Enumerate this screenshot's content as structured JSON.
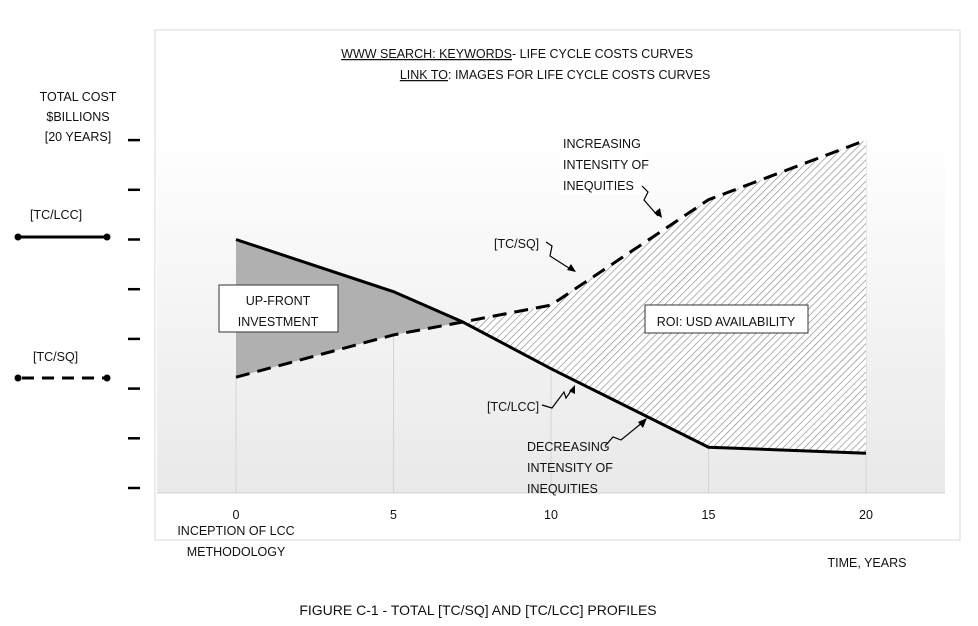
{
  "chart_data": {
    "type": "line",
    "title_line1_link": "WWW SEARCH: KEYWORDS",
    "title_line1_rest": " - LIFE CYCLE COSTS CURVES",
    "title_line2_link": "LINK TO",
    "title_line2_rest": ": IMAGES FOR LIFE CYCLE COSTS CURVES",
    "caption": "FIGURE C-1 - TOTAL [TC/SQ] AND [TC/LCC] PROFILES",
    "ylabel": [
      "TOTAL COST",
      "$BILLIONS",
      "[20 YEARS]"
    ],
    "xlabel": "TIME, YEARS",
    "x_origin_label": [
      "INCEPTION OF LCC",
      "METHODOLOGY"
    ],
    "x_ticks": [
      0,
      5,
      10,
      15,
      20
    ],
    "xlim": [
      -2.5,
      22.5
    ],
    "ylim": [
      0,
      7
    ],
    "y_tick_count": 8,
    "grid": "vertical",
    "legend": {
      "placement": "left",
      "entries": [
        "[TC/LCC]",
        "[TC/SQ]"
      ]
    },
    "series": [
      {
        "name": "[TC/LCC]",
        "style": "solid",
        "x": [
          0,
          5,
          7.2,
          10,
          15,
          20
        ],
        "y": [
          5.0,
          3.95,
          3.34,
          2.4,
          0.82,
          0.7
        ]
      },
      {
        "name": "[TC/SQ]",
        "style": "dashed",
        "x": [
          0,
          5,
          7.2,
          10,
          15,
          20
        ],
        "y": [
          2.23,
          3.08,
          3.34,
          3.68,
          5.8,
          7.0
        ]
      }
    ],
    "annotations": {
      "upfront": [
        "UP-FRONT",
        "INVESTMENT"
      ],
      "roi": "ROI: USD AVAILABILITY",
      "increasing": [
        "INCREASING",
        "INTENSITY OF",
        "INEQUITIES"
      ],
      "decreasing": [
        "DECREASING",
        "INTENSITY OF",
        "INEQUITIES"
      ],
      "sq_label": "[TC/SQ]",
      "lcc_label": "[TC/LCC]"
    }
  }
}
